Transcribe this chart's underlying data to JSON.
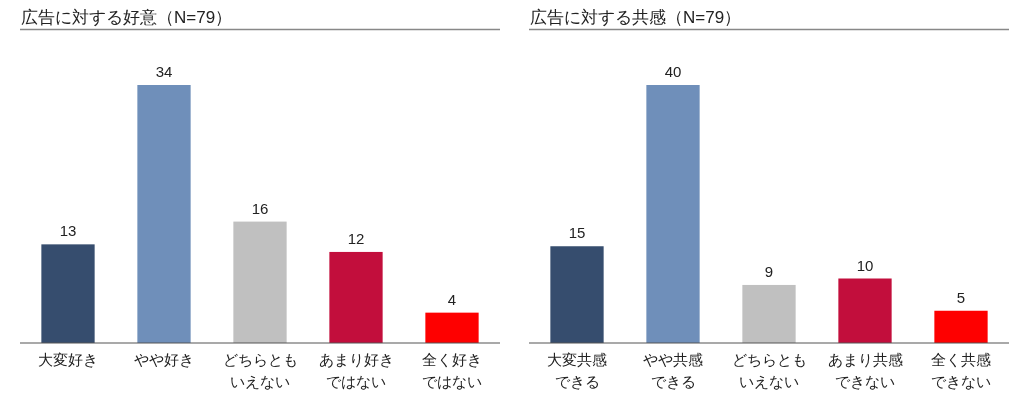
{
  "chart_data": [
    {
      "type": "bar",
      "title": "広告に対する好意（N=79）",
      "categories": [
        "大変好き",
        "やや好き",
        "どちらともいえない",
        "あまり好きではない",
        "全く好きではない"
      ],
      "values": [
        13,
        34,
        16,
        12,
        4
      ],
      "colors": [
        "#364d6e",
        "#6f8fba",
        "#c0c0c0",
        "#c20e3c",
        "#fe0000"
      ],
      "data_labels": true
    },
    {
      "type": "bar",
      "title": "広告に対する共感（N=79）",
      "categories": [
        "大変共感できる",
        "やや共感できる",
        "どちらともいえない",
        "あまり共感できない",
        "全く共感できない"
      ],
      "values": [
        15,
        40,
        9,
        10,
        5
      ],
      "colors": [
        "#364d6e",
        "#6f8fba",
        "#c0c0c0",
        "#c20e3c",
        "#fe0000"
      ],
      "data_labels": true
    }
  ]
}
